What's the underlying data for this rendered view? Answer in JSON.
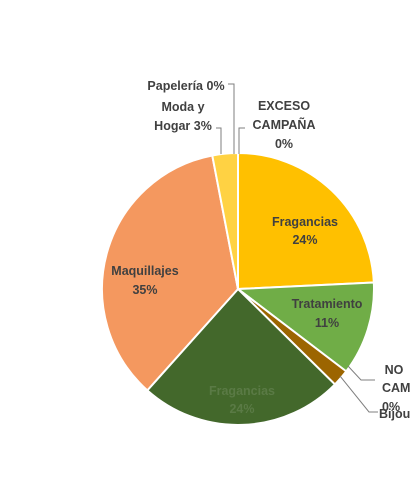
{
  "chart_data": {
    "type": "pie",
    "title": "",
    "slices": [
      {
        "label": "Fragancias",
        "value": 24,
        "value_label": "24%",
        "color": "#FFC000"
      },
      {
        "label": "Tratamiento",
        "value": 11,
        "value_label": "11%",
        "color": "#70AD47"
      },
      {
        "label": "NO CAMPAÑA",
        "value": 0,
        "value_label": "0%",
        "color": "#A9A9A9"
      },
      {
        "label": "Bijou",
        "value": 2,
        "value_label": "",
        "color": "#9C6500"
      },
      {
        "label": "Fragancias",
        "value": 24,
        "value_label": "24%",
        "color": "#43682B"
      },
      {
        "label": "Maquillajes",
        "value": 35,
        "value_label": "35%",
        "color": "#F4985F"
      },
      {
        "label": "Moda y Hogar",
        "value": 3,
        "value_label": "3%",
        "color": "#FFD243"
      },
      {
        "label": "Papelería",
        "value": 0,
        "value_label": "0%",
        "color": "#BDBDBD"
      },
      {
        "label": "EXCESO CAMPAÑA",
        "value": 0,
        "value_label": "0%",
        "color": "#DDDDDD"
      }
    ]
  },
  "labels": {
    "exceso_1": "EXCESO",
    "exceso_2": "CAMPAÑA",
    "exceso_3": "0%",
    "papeleria": "Papelería 0%",
    "moda_1": "Moda y",
    "moda_2": "Hogar 3%",
    "frag1_name": "Fragancias",
    "frag1_val": "24%",
    "trat_name": "Tratamiento",
    "trat_val": "11%",
    "no_1": "NO",
    "no_2": "CAMPAÑA",
    "no_3": "0%",
    "bijou": "Bijou",
    "frag2_name": "Fragancias",
    "frag2_val": "24%",
    "maq_name": "Maquillajes",
    "maq_val": "35%"
  }
}
